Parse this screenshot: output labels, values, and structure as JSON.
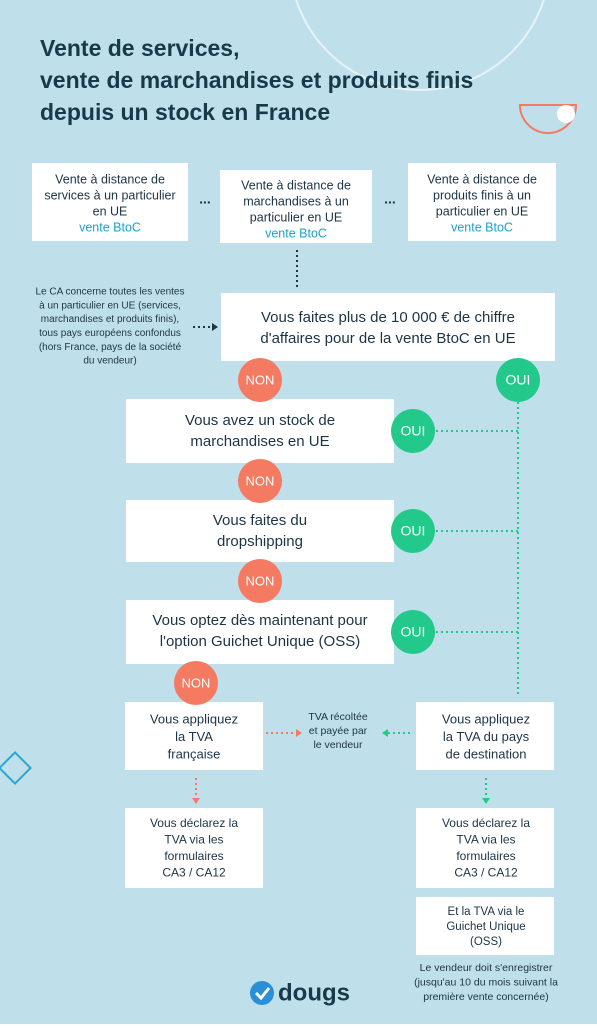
{
  "title": [
    "Vente de services,",
    "vente de marchandises et produits finis",
    "depuis un stock en France"
  ],
  "sources": [
    {
      "lines": [
        "Vente à distance de",
        "services à un particulier",
        "en UE"
      ],
      "tag": "vente BtoC"
    },
    {
      "lines": [
        "Vente à distance de",
        "marchandises à un",
        "particulier en UE"
      ],
      "tag": "vente BtoC"
    },
    {
      "lines": [
        "Vente à distance de",
        "produits finis à un",
        "particulier en UE"
      ],
      "tag": "vente BtoC"
    }
  ],
  "ellipsis": [
    "...",
    "..."
  ],
  "note": [
    "Le CA concerne toutes les ventes",
    "à un particulier en UE (services,",
    "marchandises et produits finis),",
    "tous pays européens confondus",
    "(hors France, pays de la société",
    "du vendeur)"
  ],
  "questions": [
    {
      "lines": [
        "Vous faites plus de 10 000 € de chiffre",
        "d'affaires pour de la vente BtoC en UE"
      ],
      "no": "NON",
      "yes": "OUI"
    },
    {
      "lines": [
        "Vous avez un stock de",
        "marchandises en UE"
      ],
      "no": "NON",
      "yes": "OUI"
    },
    {
      "lines": [
        "Vous faites du",
        "dropshipping"
      ],
      "no": "NON",
      "yes": "OUI"
    },
    {
      "lines": [
        "Vous optez dès maintenant pour",
        "l'option Guichet Unique (OSS)"
      ],
      "no": "NON",
      "yes": "OUI"
    }
  ],
  "outcome_left": {
    "apply": [
      "Vous appliquez",
      "la TVA",
      "française"
    ],
    "declare": [
      "Vous déclarez la",
      "TVA via les",
      "formulaires",
      "CA3 / CA12"
    ]
  },
  "outcome_right": {
    "apply": [
      "Vous appliquez",
      "la TVA du pays",
      "de destination"
    ],
    "declare": [
      "Vous déclarez la",
      "TVA via les",
      "formulaires",
      "CA3 / CA12"
    ],
    "oss": [
      "Et la TVA via le",
      "Guichet Unique",
      "(OSS)"
    ]
  },
  "middle_note": [
    "TVA récoltée",
    "et payée par",
    "le vendeur"
  ],
  "final_note": [
    "Le vendeur doit s'enregistrer",
    "(jusqu'au 10 du mois suivant la",
    "première vente concernée)"
  ],
  "logo": "dougs"
}
